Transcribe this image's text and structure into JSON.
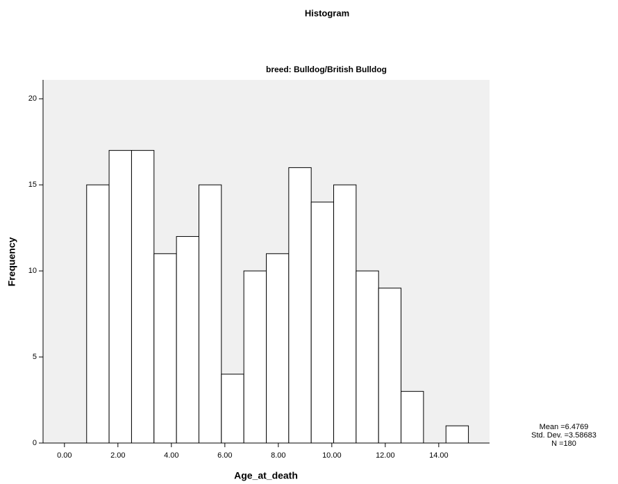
{
  "chart_data": {
    "type": "histogram",
    "title": "Histogram",
    "subtitle": "breed: Bulldog/British Bulldog",
    "xlabel": "Age_at_death",
    "ylabel": "Frequency",
    "bins": [
      0.83,
      1.67,
      2.51,
      3.35,
      4.19,
      5.03,
      5.87,
      6.71,
      7.55,
      8.39,
      9.23,
      10.07,
      10.91,
      11.75,
      12.59,
      13.43,
      14.27,
      15.11
    ],
    "values": [
      15,
      17,
      17,
      11,
      12,
      15,
      4,
      10,
      11,
      16,
      14,
      15,
      10,
      9,
      3,
      0,
      1
    ],
    "color": "#ffffff",
    "edgecolor": "#000000",
    "background": "#f0f0f0",
    "xlim": [
      -0.8,
      15.9
    ],
    "ylim": [
      0,
      21.1
    ],
    "xticks": [
      {
        "value": 0,
        "label": "0.00"
      },
      {
        "value": 2,
        "label": "2.00"
      },
      {
        "value": 4,
        "label": "4.00"
      },
      {
        "value": 6,
        "label": "6.00"
      },
      {
        "value": 8,
        "label": "8.00"
      },
      {
        "value": 10,
        "label": "10.00"
      },
      {
        "value": 12,
        "label": "12.00"
      },
      {
        "value": 14,
        "label": "14.00"
      }
    ],
    "yticks": [
      0,
      5,
      10,
      15,
      20
    ],
    "annotations": [
      "Mean =6.4769",
      "Std. Dev. =3.58683",
      "N =180"
    ]
  }
}
